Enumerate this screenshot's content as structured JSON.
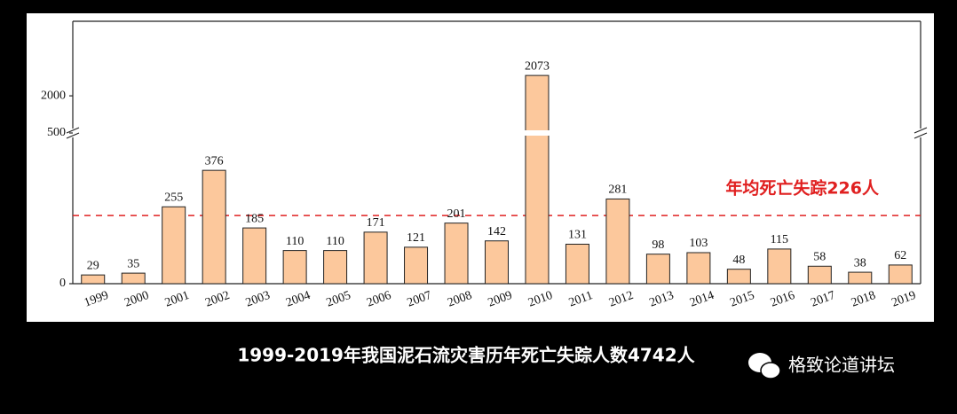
{
  "chart_data": {
    "type": "bar",
    "categories": [
      "1999",
      "2000",
      "2001",
      "2002",
      "2003",
      "2004",
      "2005",
      "2006",
      "2007",
      "2008",
      "2009",
      "2010",
      "2011",
      "2012",
      "2013",
      "2014",
      "2015",
      "2016",
      "2017",
      "2018",
      "2019"
    ],
    "values": [
      29,
      35,
      255,
      376,
      185,
      110,
      110,
      171,
      121,
      201,
      142,
      2073,
      131,
      281,
      98,
      103,
      48,
      115,
      58,
      38,
      62
    ],
    "color": "#fcc89c",
    "ylim": [
      0,
      2267
    ],
    "ybreak": [
      500,
      1867
    ],
    "yticks": [
      0,
      500,
      2000
    ],
    "hline": {
      "value": 226,
      "label": "年均死亡失踪226人",
      "color": "#e02020"
    }
  },
  "caption": "1999-2019年我国泥石流灾害历年死亡失踪人数4742人",
  "watermark": "格致论道讲坛"
}
